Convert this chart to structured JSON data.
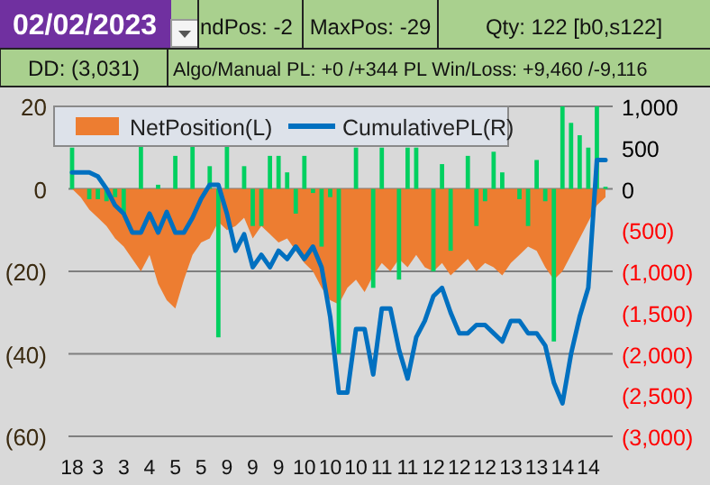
{
  "chart_data": {
    "type": "bar",
    "title": "02/02/2023",
    "annotations": [
      "ndPos: -2",
      "MaxPos: -29",
      "Qty: 122 [b0,s122]",
      "DD: (3,031)",
      "Algo/Manual PL: +0 /+344 PL Win/Loss: +9,460 /-9,116"
    ],
    "categories": [
      "18",
      null,
      null,
      "3",
      null,
      null,
      "3",
      null,
      null,
      "4",
      null,
      null,
      "5",
      null,
      null,
      "5",
      null,
      null,
      "9",
      null,
      null,
      "9",
      null,
      null,
      "9",
      null,
      null,
      "10",
      null,
      null,
      "10",
      null,
      null,
      "10",
      null,
      null,
      "11",
      null,
      null,
      "11",
      null,
      null,
      "12",
      null,
      null,
      "12",
      null,
      null,
      "12",
      null,
      null,
      "13",
      null,
      null,
      "13",
      null,
      null,
      "14",
      null,
      null,
      "14",
      null,
      null
    ],
    "series": [
      {
        "type": "area",
        "name": "NetPosition(L)",
        "color": "#ed7d31",
        "values": [
          0,
          -2,
          -5,
          -7,
          -9,
          -12,
          -14,
          -17,
          -20,
          -16,
          -23,
          -27,
          -29,
          -22,
          -16,
          -13,
          -12,
          -8,
          -10,
          -9,
          -7,
          -12,
          -9,
          -11,
          -13,
          -12,
          -15,
          -18,
          -20,
          -24,
          -27,
          -28,
          -24,
          -22,
          -25,
          -21,
          -18,
          -20,
          -17,
          -19,
          -16,
          -19,
          -20,
          -18,
          -21,
          -19,
          -17,
          -20,
          -18,
          -19,
          -21,
          -18,
          -16,
          -14,
          -15,
          -19,
          -22,
          -20,
          -16,
          -12,
          -8,
          -4,
          -2
        ]
      },
      {
        "color": "#00d060",
        "values": [
          10,
          null,
          -2.5,
          -2.5,
          -3,
          -2,
          -6,
          null,
          10.5,
          null,
          1,
          null,
          8,
          null,
          10.5,
          null,
          5.5,
          -36,
          10.5,
          null,
          5.5,
          -9,
          -9,
          8,
          8,
          4,
          -6,
          8,
          -1,
          -14,
          -2,
          -40,
          null,
          10,
          null,
          -24,
          10,
          null,
          -22,
          10,
          10,
          null,
          -20,
          6,
          -15,
          null,
          8,
          -9,
          -3,
          9,
          4,
          null,
          -2.5,
          -9,
          7,
          -3,
          -37,
          20,
          16,
          13,
          10,
          20,
          0.5
        ]
      },
      {
        "type": "line",
        "name": "CumulativePL(R)",
        "color": "#0070c0",
        "axis": "y2",
        "values": [
          200,
          200,
          200,
          150,
          0,
          -200,
          -300,
          -530,
          -530,
          -300,
          -530,
          -280,
          -530,
          -530,
          -350,
          -120,
          50,
          50,
          -300,
          -750,
          -550,
          -950,
          -800,
          -950,
          -750,
          -850,
          -700,
          -850,
          -700,
          -950,
          -1550,
          -2470,
          -2470,
          -1700,
          -1700,
          -2250,
          -1450,
          -1450,
          -1950,
          -2300,
          -1800,
          -1600,
          -1300,
          -1200,
          -1500,
          -1750,
          -1750,
          -1650,
          -1650,
          -1750,
          -1850,
          -1600,
          -1600,
          -1750,
          -1750,
          -1900,
          -2350,
          -2600,
          -2000,
          -1550,
          -1200,
          350,
          350
        ]
      }
    ],
    "ylim": [
      -60,
      20
    ],
    "yticks": [
      {
        "value": -60,
        "label": "(60)"
      },
      {
        "value": -40,
        "label": "(40)"
      },
      {
        "value": -20,
        "label": "(20)"
      },
      0,
      20
    ],
    "y2lim": [
      -3000,
      1000
    ],
    "y2ticks": [
      {
        "value": -3000,
        "label": "(3,000)"
      },
      {
        "value": -2500,
        "label": "(2,500)"
      },
      {
        "value": -2000,
        "label": "(2,000)"
      },
      {
        "value": -1500,
        "label": "(1,500)"
      },
      {
        "value": -1000,
        "label": "(1,000)"
      },
      {
        "value": -500,
        "label": "(500)"
      },
      0,
      {
        "value": 500,
        "label": "500"
      },
      {
        "value": 1000,
        "label": "1,000"
      }
    ],
    "grid": "y",
    "legend": "top"
  }
}
